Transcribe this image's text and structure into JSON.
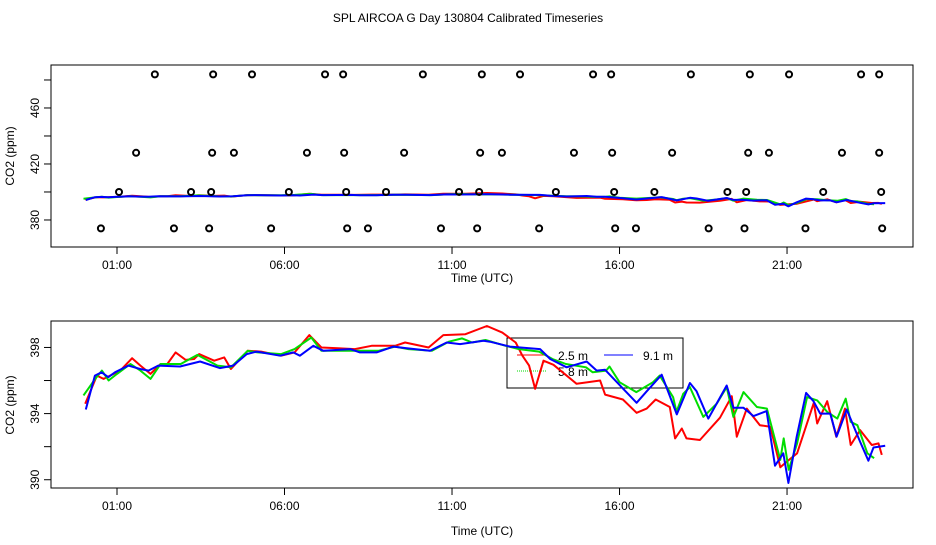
{
  "title": "SPL AIRCOA G  Day 130804  Calibrated Timeseries",
  "colors": {
    "2.5 m": "#ff0000",
    "5.8 m": "#00dd00",
    "9.1 m": "#0000ff",
    "axes": "#000000"
  },
  "chart_data": [
    {
      "type": "line",
      "panel": "top",
      "xlabel": "Time (UTC)",
      "ylabel": "CO2 (ppm)",
      "x_unit": "hours UTC",
      "xlim": [
        -0.97,
        24.76
      ],
      "ylim": [
        360.7,
        490.7
      ],
      "x_ticks": [
        1,
        6,
        11,
        16,
        21
      ],
      "x_tick_labels": [
        "01:00",
        "06:00",
        "11:00",
        "16:00",
        "21:00"
      ],
      "y_ticks": [
        380,
        400,
        420,
        440,
        460,
        480
      ],
      "y_tick_labels": [
        "380",
        "",
        "420",
        "",
        "460",
        ""
      ],
      "grid": false,
      "series_ref": "bottom",
      "flag_points": [
        {
          "y": 484,
          "x": [
            2.13,
            3.87,
            5.03,
            7.21,
            7.75,
            10.13,
            11.89,
            13.03,
            15.21,
            15.75,
            18.13,
            19.89,
            21.06,
            23.21,
            23.75
          ]
        },
        {
          "y": 428,
          "x": [
            1.57,
            3.84,
            4.49,
            6.67,
            7.78,
            9.57,
            11.84,
            12.49,
            14.64,
            15.78,
            17.57,
            19.84,
            20.46,
            22.64,
            23.75
          ]
        },
        {
          "y": 400,
          "x": [
            1.06,
            3.21,
            3.81,
            6.13,
            7.84,
            9.03,
            11.21,
            11.81,
            14.1,
            15.84,
            17.04,
            19.22,
            19.78,
            22.08,
            23.81
          ]
        },
        {
          "y": 374,
          "x": [
            0.52,
            2.7,
            3.75,
            5.6,
            7.87,
            8.49,
            10.67,
            11.75,
            13.6,
            15.87,
            16.49,
            18.66,
            19.73,
            21.55,
            23.84
          ]
        }
      ]
    },
    {
      "type": "line",
      "panel": "bottom",
      "xlabel": "Time (UTC)",
      "ylabel": "CO2 (ppm)",
      "x_unit": "hours UTC",
      "xlim": [
        -0.97,
        24.76
      ],
      "ylim": [
        389.5,
        399.6
      ],
      "x_ticks": [
        1,
        6,
        11,
        16,
        21
      ],
      "x_tick_labels": [
        "01:00",
        "06:00",
        "11:00",
        "16:00",
        "21:00"
      ],
      "y_ticks": [
        390,
        392,
        394,
        396,
        398
      ],
      "y_tick_labels": [
        "390",
        "",
        "394",
        "",
        "398"
      ],
      "grid": false,
      "legend": {
        "placement": "top-center",
        "entries": [
          "2.5 m",
          "9.1 m",
          "5.8 m"
        ]
      },
      "series": [
        {
          "name": "2.5 m",
          "x": [
            0.05,
            0.4,
            0.6,
            0.9,
            1.1,
            1.45,
            1.7,
            2.0,
            2.3,
            2.5,
            2.75,
            3.05,
            3.3,
            3.45,
            3.9,
            4.2,
            4.4,
            4.9,
            5.3,
            5.9,
            6.3,
            6.74,
            7.1,
            7.6,
            8.1,
            8.6,
            9.3,
            9.6,
            10.3,
            10.74,
            11.4,
            12.04,
            12.5,
            12.9,
            13.1,
            13.3,
            13.48,
            13.73,
            14.03,
            14.72,
            15.42,
            15.57,
            16.1,
            16.51,
            16.81,
            17.08,
            17.5,
            17.66,
            17.86,
            18.0,
            18.4,
            19.0,
            19.35,
            19.5,
            19.8,
            20.19,
            20.5,
            20.8,
            21.0,
            21.3,
            21.8,
            21.9,
            22.2,
            22.47,
            22.73,
            22.9,
            23.18,
            23.53,
            23.73,
            23.83
          ],
          "y": [
            394.6,
            396.3,
            396.1,
            396.4,
            396.6,
            397.35,
            396.9,
            396.4,
            397.0,
            397.0,
            397.7,
            397.25,
            397.3,
            397.6,
            397.2,
            397.4,
            396.7,
            397.8,
            397.75,
            397.5,
            397.7,
            398.75,
            398.0,
            397.95,
            397.9,
            398.1,
            398.1,
            398.3,
            398.0,
            398.75,
            398.8,
            399.3,
            398.9,
            398.3,
            397.5,
            396.9,
            395.5,
            397.2,
            396.95,
            395.8,
            396.0,
            395.15,
            394.85,
            394.05,
            394.3,
            394.85,
            394.4,
            392.5,
            393.1,
            392.5,
            392.4,
            393.75,
            395.05,
            392.6,
            394.3,
            393.3,
            393.2,
            390.75,
            391.1,
            391.6,
            394.65,
            393.4,
            394.75,
            392.6,
            394.3,
            392.1,
            393.0,
            392.1,
            392.2,
            391.5
          ]
        },
        {
          "name": "5.8 m",
          "x": [
            0.0,
            0.35,
            0.55,
            0.75,
            1.0,
            1.4,
            1.7,
            2.0,
            2.3,
            2.9,
            3.4,
            4.0,
            4.4,
            4.9,
            5.2,
            5.9,
            6.3,
            6.8,
            7.1,
            7.9,
            8.4,
            8.8,
            9.3,
            9.7,
            10.4,
            10.9,
            11.3,
            11.6,
            12.0,
            12.6,
            13.0,
            13.6,
            14.0,
            14.4,
            15.0,
            15.2,
            15.6,
            15.7,
            16.0,
            16.5,
            17.0,
            17.2,
            17.6,
            17.7,
            17.9,
            18.1,
            18.5,
            18.9,
            19.2,
            19.4,
            19.7,
            20.1,
            20.4,
            20.8,
            20.9,
            21.05,
            21.3,
            21.6,
            21.9,
            22.2,
            22.5,
            22.75,
            22.9,
            23.1,
            23.4,
            23.6
          ],
          "y": [
            395.1,
            396.1,
            396.6,
            396.0,
            396.4,
            397.0,
            396.6,
            396.1,
            397.0,
            397.0,
            397.55,
            396.9,
            396.8,
            397.8,
            397.7,
            397.6,
            397.9,
            398.6,
            397.8,
            397.8,
            397.8,
            397.8,
            398.05,
            397.9,
            397.8,
            398.35,
            398.55,
            398.3,
            398.45,
            398.1,
            397.9,
            397.75,
            397.3,
            397.0,
            396.8,
            396.5,
            396.6,
            396.85,
            395.9,
            395.3,
            395.9,
            396.3,
            395.0,
            394.1,
            395.2,
            395.6,
            393.8,
            394.6,
            395.6,
            393.8,
            395.3,
            394.4,
            394.3,
            391.2,
            392.5,
            390.6,
            392.2,
            395.0,
            394.8,
            394.1,
            393.7,
            394.9,
            393.5,
            393.3,
            391.6,
            391.3
          ]
        },
        {
          "name": "9.1 m",
          "x": [
            0.07,
            0.34,
            0.54,
            0.74,
            0.94,
            1.34,
            1.69,
            1.94,
            2.23,
            2.88,
            3.48,
            4.07,
            4.47,
            4.87,
            5.17,
            5.87,
            6.26,
            6.46,
            6.86,
            7.16,
            7.96,
            8.25,
            8.75,
            9.25,
            9.65,
            10.34,
            10.84,
            11.24,
            11.94,
            12.13,
            12.73,
            13.63,
            13.93,
            14.42,
            15.02,
            15.32,
            15.57,
            16.11,
            16.51,
            16.81,
            17.26,
            17.71,
            18.1,
            18.3,
            18.65,
            19.2,
            19.4,
            19.7,
            20.0,
            20.39,
            20.64,
            20.89,
            21.04,
            21.29,
            21.57,
            21.79,
            21.99,
            22.29,
            22.48,
            22.78,
            23.18,
            23.43,
            23.58,
            23.93
          ],
          "y": [
            394.25,
            396.3,
            396.5,
            396.2,
            396.5,
            396.9,
            396.7,
            396.6,
            396.9,
            396.85,
            397.15,
            396.75,
            396.9,
            397.6,
            397.75,
            397.5,
            397.7,
            397.5,
            398.1,
            397.8,
            397.9,
            397.7,
            397.7,
            398.05,
            397.95,
            397.8,
            398.3,
            398.2,
            398.4,
            398.35,
            398.05,
            397.9,
            397.3,
            396.8,
            397.15,
            396.6,
            396.65,
            395.5,
            394.65,
            395.35,
            396.35,
            393.95,
            395.85,
            395.35,
            393.7,
            395.7,
            394.35,
            394.35,
            393.85,
            394.15,
            390.85,
            391.6,
            389.8,
            392.6,
            395.25,
            394.75,
            394.0,
            394.0,
            392.6,
            394.25,
            392.3,
            391.15,
            391.95,
            392.05
          ]
        }
      ]
    }
  ]
}
